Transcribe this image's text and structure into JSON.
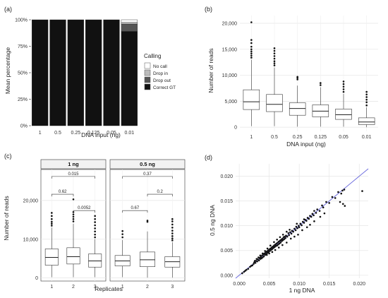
{
  "chart_data": [
    {
      "panel": "(a)",
      "type": "bar",
      "stacked": true,
      "xlabel": "DNA input (ng)",
      "ylabel": "Mean percentage",
      "categories": [
        "1",
        "0.5",
        "0.25",
        "0.125",
        "0.05",
        "0.01"
      ],
      "yticks": [
        "0%",
        "25%",
        "50%",
        "75%",
        "100%"
      ],
      "ylim": [
        0,
        100
      ],
      "legend_title": "Calling",
      "legend_position": "right",
      "series": [
        {
          "name": "Correct GT",
          "color": "#111111",
          "values": [
            100,
            100,
            100,
            100,
            100,
            89
          ]
        },
        {
          "name": "Drop out",
          "color": "#555555",
          "values": [
            0,
            0,
            0,
            0,
            0,
            7
          ]
        },
        {
          "name": "Drop in",
          "color": "#bbbbbb",
          "values": [
            0,
            0,
            0,
            0,
            0,
            1.5
          ]
        },
        {
          "name": "No call",
          "color": "#ffffff",
          "values": [
            0,
            0,
            0,
            0,
            0,
            2.5
          ]
        }
      ]
    },
    {
      "panel": "(b)",
      "type": "box",
      "xlabel": "DNA input (ng)",
      "ylabel": "Number of reads",
      "categories": [
        "1",
        "0.5",
        "0.25",
        "0.125",
        "0.05",
        "0.01"
      ],
      "yticks": [
        0,
        5000,
        10000,
        15000,
        20000
      ],
      "ytick_labels": [
        "0",
        "5,000",
        "10,000",
        "15,000",
        "20,000"
      ],
      "ylim": [
        -800,
        21500
      ],
      "grid": true,
      "boxes": [
        {
          "min": 200,
          "q1": 3400,
          "median": 4900,
          "q3": 7200,
          "max": 13000,
          "outliers": [
            13400,
            13800,
            14200,
            14600,
            15000,
            15500,
            16200,
            16800,
            20200
          ]
        },
        {
          "min": 200,
          "q1": 3000,
          "median": 4400,
          "q3": 6300,
          "max": 11500,
          "outliers": [
            11900,
            12300,
            12700,
            13200,
            13700,
            14200,
            14700,
            15200
          ]
        },
        {
          "min": 100,
          "q1": 2300,
          "median": 3600,
          "q3": 4700,
          "max": 8000,
          "outliers": [
            9200,
            9500,
            9700
          ]
        },
        {
          "min": 100,
          "q1": 2000,
          "median": 3100,
          "q3": 4300,
          "max": 7700,
          "outliers": [
            8100,
            8500
          ]
        },
        {
          "min": 100,
          "q1": 1500,
          "median": 2400,
          "q3": 3500,
          "max": 6400,
          "outliers": [
            6800,
            7300,
            7800,
            8300,
            8800
          ]
        },
        {
          "min": 0,
          "q1": 500,
          "median": 1000,
          "q3": 1800,
          "max": 3800,
          "outliers": [
            4200,
            4800,
            5300,
            5800,
            6300,
            6800
          ]
        }
      ]
    },
    {
      "panel": "(c)",
      "type": "box",
      "xlabel": "Replicates",
      "ylabel": "Number of reads",
      "facets": [
        "1 ng",
        "0.5 ng"
      ],
      "categories": [
        "1",
        "2",
        "3"
      ],
      "yticks": [
        0,
        10000,
        20000
      ],
      "ytick_labels": [
        "0",
        "10,000",
        "20,000"
      ],
      "ylim": [
        -800,
        28000
      ],
      "grid": true,
      "facet_boxes": [
        [
          {
            "min": 200,
            "q1": 3300,
            "median": 5300,
            "q3": 7500,
            "max": 13000,
            "outliers": [
              13500,
              14000,
              14500,
              15200,
              16000,
              16800
            ]
          },
          {
            "min": 200,
            "q1": 3600,
            "median": 5500,
            "q3": 7800,
            "max": 14000,
            "outliers": [
              14600,
              15200,
              15800,
              16400,
              17000,
              20300
            ]
          },
          {
            "min": 200,
            "q1": 2800,
            "median": 4400,
            "q3": 6200,
            "max": 10000,
            "outliers": [
              10500,
              11200,
              12000,
              12800,
              13600,
              14400,
              15200,
              16000
            ]
          }
        ],
        [
          {
            "min": 200,
            "q1": 3100,
            "median": 4400,
            "q3": 5800,
            "max": 9800,
            "outliers": [
              10500,
              11300,
              12100
            ]
          },
          {
            "min": 100,
            "q1": 2900,
            "median": 4700,
            "q3": 6700,
            "max": 12000,
            "outliers": [
              14500,
              14800
            ]
          },
          {
            "min": 100,
            "q1": 2800,
            "median": 4200,
            "q3": 5500,
            "max": 9200,
            "outliers": [
              9700,
              10200,
              10800,
              11500,
              12200,
              13000,
              13800,
              14600,
              15200
            ]
          }
        ]
      ],
      "comparisons": [
        [
          {
            "from": 1,
            "to": 3,
            "label": "0.015",
            "y": 26200
          },
          {
            "from": 1,
            "to": 2,
            "label": "0.62",
            "y": 21600
          },
          {
            "from": 2,
            "to": 3,
            "label": "0.0052",
            "y": 17400
          }
        ],
        [
          {
            "from": 1,
            "to": 3,
            "label": "0.37",
            "y": 26200
          },
          {
            "from": 1,
            "to": 2,
            "label": "0.67",
            "y": 17400
          },
          {
            "from": 2,
            "to": 3,
            "label": "0.2",
            "y": 21600
          }
        ]
      ]
    },
    {
      "panel": "(d)",
      "type": "scatter",
      "xlabel": "1 ng DNA",
      "ylabel": "0.5 ng DNA",
      "xticks": [
        0,
        0.005,
        0.01,
        0.015,
        0.02
      ],
      "xtick_labels": [
        "0.000",
        "0.005",
        "0.010",
        "0.015",
        "0.020"
      ],
      "yticks": [
        0,
        0.005,
        0.01,
        0.015,
        0.02
      ],
      "ytick_labels": [
        "0.000",
        "0.005",
        "0.010",
        "0.015",
        "0.020"
      ],
      "xlim": [
        -0.0006,
        0.0215
      ],
      "ylim": [
        -0.0006,
        0.0225
      ],
      "grid": true,
      "reference_line": {
        "slope": 1,
        "intercept": 0,
        "color": "#6666dd"
      },
      "points": [
        [
          0.0005,
          0.0004
        ],
        [
          0.0008,
          0.0007
        ],
        [
          0.001,
          0.0009
        ],
        [
          0.0012,
          0.0011
        ],
        [
          0.0015,
          0.0013
        ],
        [
          0.0018,
          0.0017
        ],
        [
          0.002,
          0.0019
        ],
        [
          0.0022,
          0.002
        ],
        [
          0.0024,
          0.0023
        ],
        [
          0.0025,
          0.0026
        ],
        [
          0.0027,
          0.0025
        ],
        [
          0.0028,
          0.0029
        ],
        [
          0.003,
          0.0028
        ],
        [
          0.0031,
          0.0032
        ],
        [
          0.0033,
          0.003
        ],
        [
          0.0034,
          0.0035
        ],
        [
          0.0035,
          0.0033
        ],
        [
          0.0036,
          0.0037
        ],
        [
          0.0037,
          0.0034
        ],
        [
          0.0038,
          0.004
        ],
        [
          0.0039,
          0.0036
        ],
        [
          0.004,
          0.0042
        ],
        [
          0.0041,
          0.0038
        ],
        [
          0.0042,
          0.0044
        ],
        [
          0.0043,
          0.0041
        ],
        [
          0.0044,
          0.0046
        ],
        [
          0.0045,
          0.0043
        ],
        [
          0.0046,
          0.0048
        ],
        [
          0.0047,
          0.0045
        ],
        [
          0.0048,
          0.005
        ],
        [
          0.0049,
          0.0047
        ],
        [
          0.005,
          0.0052
        ],
        [
          0.0051,
          0.0049
        ],
        [
          0.0052,
          0.0054
        ],
        [
          0.0053,
          0.0051
        ],
        [
          0.0054,
          0.0056
        ],
        [
          0.0055,
          0.0053
        ],
        [
          0.0056,
          0.0058
        ],
        [
          0.0057,
          0.0055
        ],
        [
          0.0058,
          0.006
        ],
        [
          0.0059,
          0.0057
        ],
        [
          0.006,
          0.0062
        ],
        [
          0.0061,
          0.0059
        ],
        [
          0.0062,
          0.0064
        ],
        [
          0.0063,
          0.006
        ],
        [
          0.0064,
          0.0066
        ],
        [
          0.0065,
          0.0062
        ],
        [
          0.0066,
          0.0068
        ],
        [
          0.0067,
          0.0064
        ],
        [
          0.0068,
          0.007
        ],
        [
          0.0069,
          0.0066
        ],
        [
          0.007,
          0.0072
        ],
        [
          0.0071,
          0.0069
        ],
        [
          0.0072,
          0.0074
        ],
        [
          0.0073,
          0.0071
        ],
        [
          0.0074,
          0.0077
        ],
        [
          0.0075,
          0.0073
        ],
        [
          0.0076,
          0.0078
        ],
        [
          0.0077,
          0.0075
        ],
        [
          0.0078,
          0.008
        ],
        [
          0.008,
          0.0078
        ],
        [
          0.0082,
          0.0085
        ],
        [
          0.0083,
          0.0081
        ],
        [
          0.0085,
          0.0087
        ],
        [
          0.0087,
          0.0084
        ],
        [
          0.0088,
          0.009
        ],
        [
          0.009,
          0.0088
        ],
        [
          0.0092,
          0.0094
        ],
        [
          0.0094,
          0.0091
        ],
        [
          0.0095,
          0.0098
        ],
        [
          0.0097,
          0.0095
        ],
        [
          0.0099,
          0.01
        ],
        [
          0.01,
          0.0097
        ],
        [
          0.0102,
          0.0104
        ],
        [
          0.0104,
          0.0101
        ],
        [
          0.0106,
          0.0108
        ],
        [
          0.0108,
          0.0106
        ],
        [
          0.011,
          0.0112
        ],
        [
          0.0112,
          0.011
        ],
        [
          0.0114,
          0.0116
        ],
        [
          0.0116,
          0.0114
        ],
        [
          0.0118,
          0.012
        ],
        [
          0.012,
          0.0118
        ],
        [
          0.0122,
          0.0124
        ],
        [
          0.0124,
          0.0121
        ],
        [
          0.0128,
          0.0126
        ],
        [
          0.013,
          0.0133
        ],
        [
          0.0134,
          0.013
        ],
        [
          0.0138,
          0.0141
        ],
        [
          0.014,
          0.0137
        ],
        [
          0.0145,
          0.0148
        ],
        [
          0.015,
          0.0146
        ],
        [
          0.0155,
          0.0158
        ],
        [
          0.016,
          0.0156
        ],
        [
          0.0165,
          0.0168
        ],
        [
          0.017,
          0.0165
        ],
        [
          0.0172,
          0.0171
        ],
        [
          0.0175,
          0.0173
        ],
        [
          0.0205,
          0.017
        ],
        [
          0.0168,
          0.0148
        ],
        [
          0.0173,
          0.0144
        ],
        [
          0.0176,
          0.014
        ],
        [
          0.0142,
          0.0125
        ],
        [
          0.0135,
          0.0118
        ],
        [
          0.0125,
          0.0109
        ],
        [
          0.0118,
          0.0102
        ],
        [
          0.0113,
          0.0097
        ],
        [
          0.0105,
          0.0091
        ],
        [
          0.0098,
          0.0082
        ],
        [
          0.0092,
          0.0078
        ],
        [
          0.0086,
          0.0074
        ],
        [
          0.0079,
          0.0066
        ],
        [
          0.0072,
          0.0061
        ],
        [
          0.0066,
          0.0056
        ],
        [
          0.006,
          0.0051
        ],
        [
          0.0055,
          0.0047
        ],
        [
          0.005,
          0.0044
        ],
        [
          0.0046,
          0.0041
        ],
        [
          0.0058,
          0.0067
        ],
        [
          0.0063,
          0.0072
        ],
        [
          0.0068,
          0.0077
        ],
        [
          0.0073,
          0.0082
        ],
        [
          0.0079,
          0.0088
        ],
        [
          0.0084,
          0.0092
        ],
        [
          0.0096,
          0.0104
        ],
        [
          0.0108,
          0.0113
        ],
        [
          0.0125,
          0.013
        ],
        [
          0.0052,
          0.006
        ],
        [
          0.0047,
          0.0054
        ],
        [
          0.0043,
          0.0049
        ],
        [
          0.0039,
          0.0044
        ],
        [
          0.0035,
          0.004
        ],
        [
          0.0032,
          0.0036
        ],
        [
          0.0029,
          0.0033
        ],
        [
          0.0026,
          0.0029
        ]
      ]
    }
  ]
}
